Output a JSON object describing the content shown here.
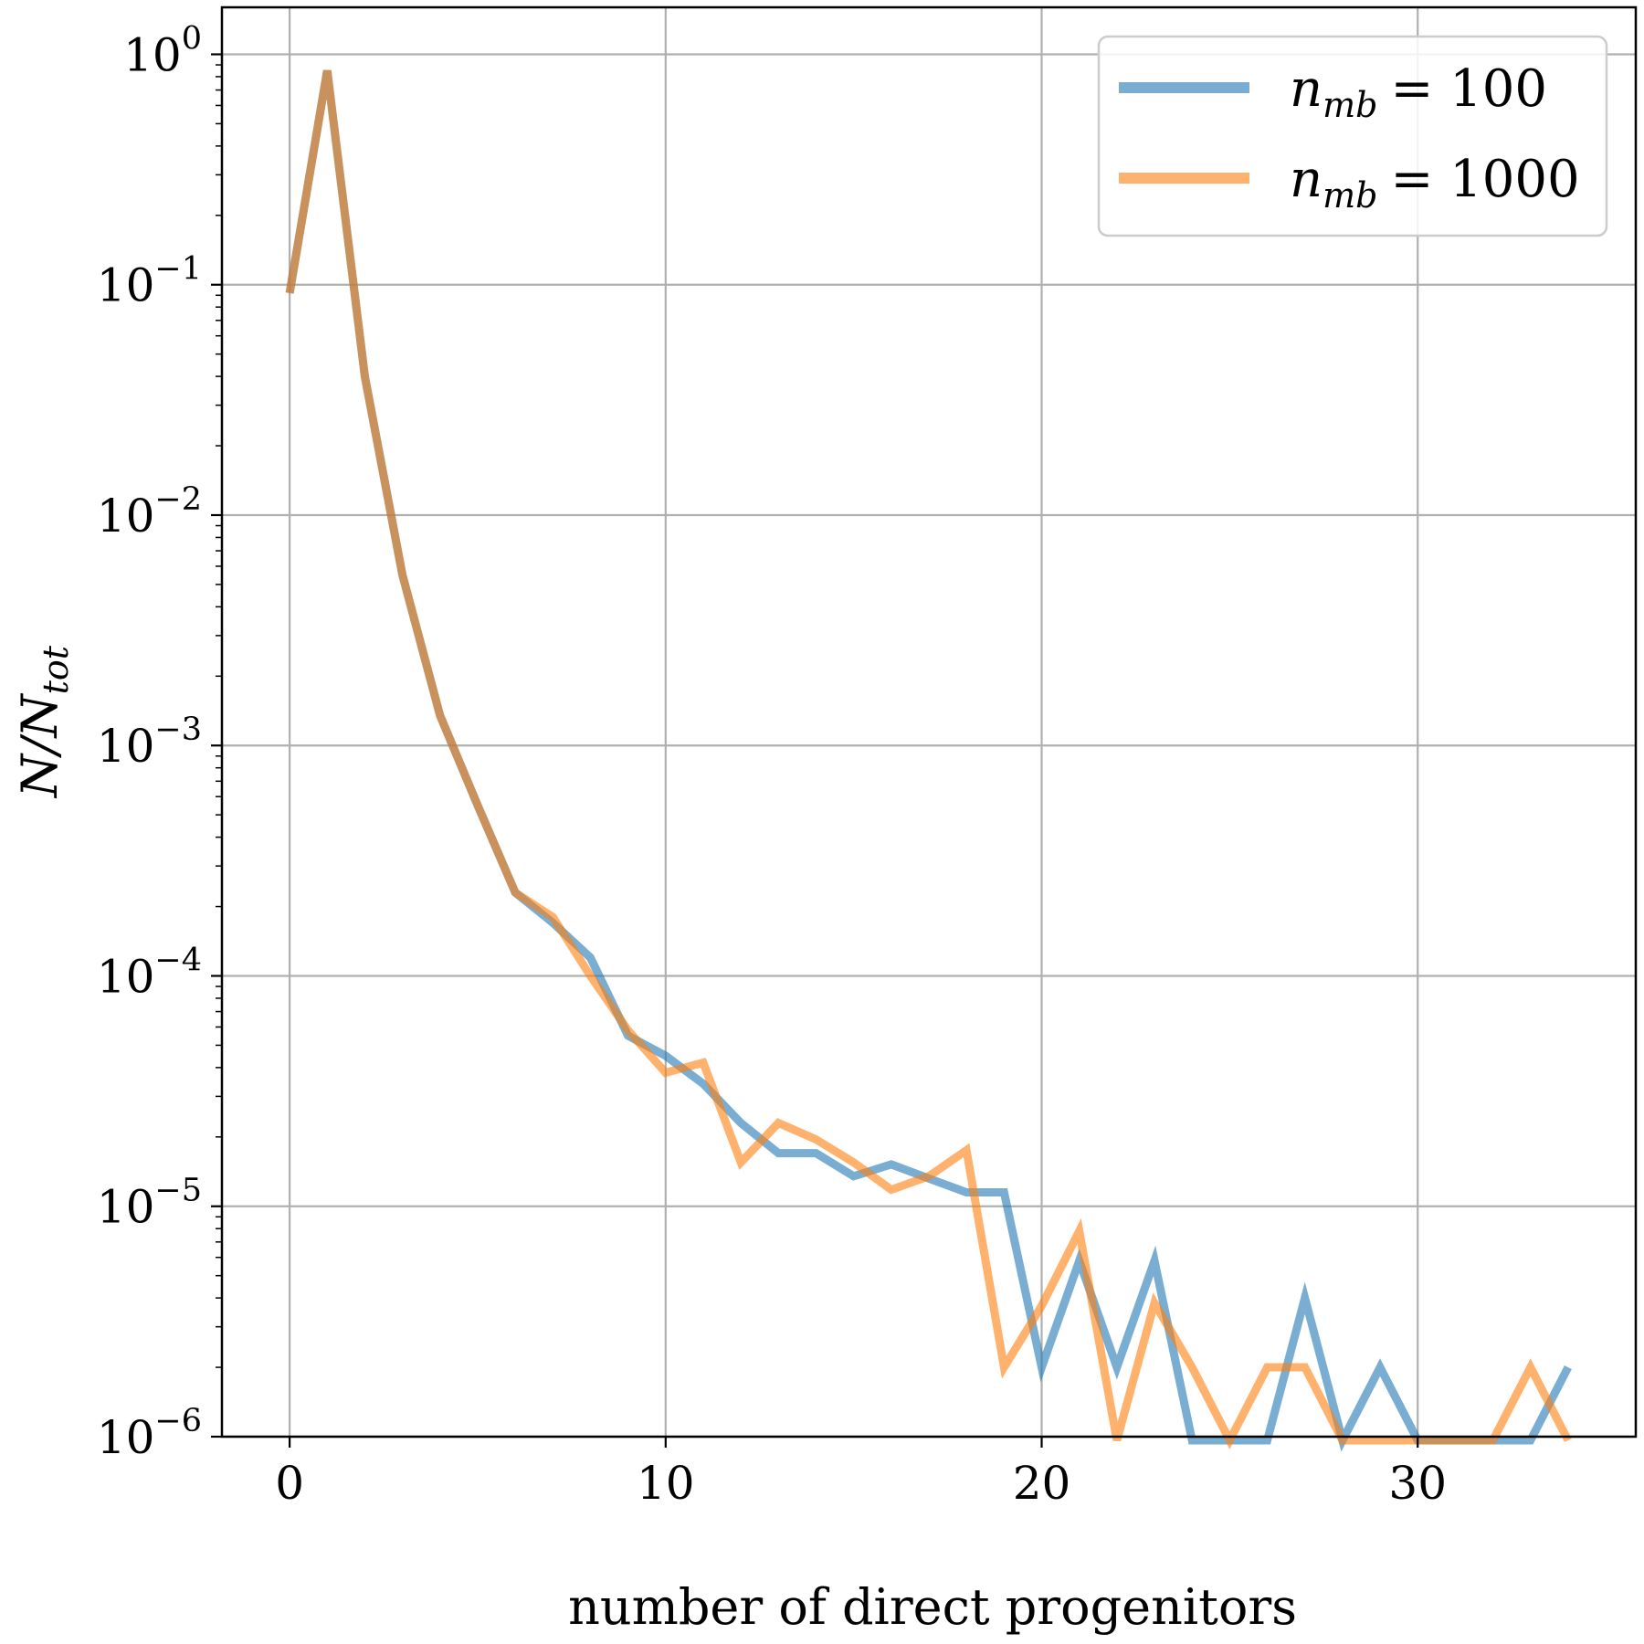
{
  "chart_data": {
    "type": "line",
    "title": "",
    "xlabel": "number of direct progenitors",
    "ylabel": "N/N_tot",
    "ylabel_main": "N/N",
    "ylabel_sub": "tot",
    "xlim": [
      -1.8,
      35.8
    ],
    "ylim": [
      1e-06,
      1.6
    ],
    "yscale": "log",
    "grid": true,
    "legend_position": "top-right",
    "x_ticks": [
      {
        "value": 0,
        "label": "0"
      },
      {
        "value": 10,
        "label": "10"
      },
      {
        "value": 20,
        "label": "20"
      },
      {
        "value": 30,
        "label": "30"
      }
    ],
    "y_ticks": [
      {
        "value": 1,
        "base": "10",
        "exp": "0"
      },
      {
        "value": 0.1,
        "base": "10",
        "exp": "−1"
      },
      {
        "value": 0.01,
        "base": "10",
        "exp": "−2"
      },
      {
        "value": 0.001,
        "base": "10",
        "exp": "−3"
      },
      {
        "value": 0.0001,
        "base": "10",
        "exp": "−4"
      },
      {
        "value": 1e-05,
        "base": "10",
        "exp": "−5"
      },
      {
        "value": 1e-06,
        "base": "10",
        "exp": "−6"
      }
    ],
    "series": [
      {
        "name": "n_mb = 100",
        "legend_var": "n",
        "legend_sub": "mb",
        "legend_value": "= 100",
        "color": "#1f77b4",
        "x": [
          0,
          1,
          2,
          3,
          4,
          5,
          6,
          7,
          8,
          9,
          10,
          11,
          12,
          13,
          14,
          15,
          16,
          17,
          18,
          19,
          20,
          21,
          22,
          23,
          24,
          25,
          26,
          27,
          28,
          29,
          30,
          31,
          32,
          33,
          34
        ],
        "y": [
          0.092,
          0.85,
          0.04,
          0.0055,
          0.00135,
          0.00055,
          0.00023,
          0.00017,
          0.00012,
          5.5e-05,
          4.5e-05,
          3.4e-05,
          2.3e-05,
          1.7e-05,
          1.7e-05,
          1.35e-05,
          1.52e-05,
          1.32e-05,
          1.15e-05,
          1.15e-05,
          2e-06,
          5.8e-06,
          2e-06,
          5.8e-06,
          0,
          0,
          0,
          4e-06,
          0,
          2e-06,
          0,
          0,
          0,
          0,
          2e-06
        ]
      },
      {
        "name": "n_mb = 1000",
        "legend_var": "n",
        "legend_sub": "mb",
        "legend_value": "= 1000",
        "color": "#ff7f0e",
        "x": [
          0,
          1,
          2,
          3,
          4,
          5,
          6,
          7,
          8,
          9,
          10,
          11,
          12,
          13,
          14,
          15,
          16,
          17,
          18,
          19,
          20,
          21,
          22,
          23,
          24,
          25,
          26,
          27,
          28,
          29,
          30,
          31,
          32,
          33,
          34
        ],
        "y": [
          0.092,
          0.85,
          0.04,
          0.0055,
          0.00135,
          0.00055,
          0.00023,
          0.00018,
          0.0001,
          5.8e-05,
          3.8e-05,
          4.2e-05,
          1.55e-05,
          2.3e-05,
          1.95e-05,
          1.55e-05,
          1.18e-05,
          1.35e-05,
          1.75e-05,
          2e-06,
          3.7e-06,
          7.8e-06,
          0,
          3.8e-06,
          2e-06,
          0,
          2e-06,
          2e-06,
          0,
          0,
          0,
          0,
          0,
          2e-06,
          0
        ]
      }
    ]
  }
}
